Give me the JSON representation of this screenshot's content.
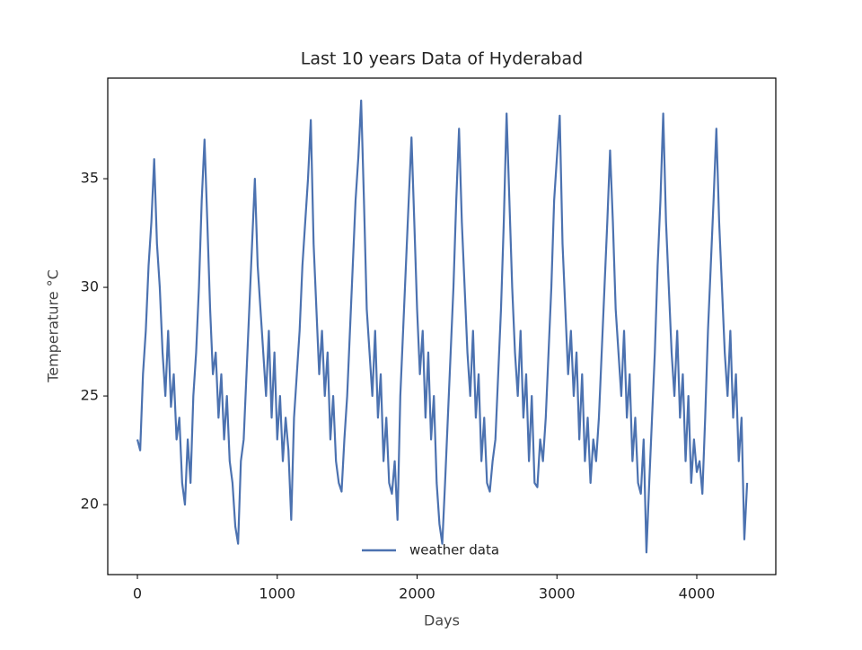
{
  "chart_data": {
    "type": "line",
    "title": "Last 10 years Data of Hyderabad",
    "x_label": "Days",
    "y_label": "Temperature °C",
    "x": [
      0,
      20,
      40,
      60,
      80,
      100,
      120,
      140,
      160,
      180,
      200,
      220,
      240,
      260,
      280,
      300,
      320,
      340,
      360,
      380,
      400,
      420,
      440,
      460,
      480,
      500,
      520,
      540,
      560,
      580,
      600,
      620,
      640,
      660,
      680,
      700,
      720,
      740,
      760,
      780,
      800,
      820,
      840,
      860,
      880,
      900,
      920,
      940,
      960,
      980,
      1000,
      1020,
      1040,
      1060,
      1080,
      1100,
      1120,
      1140,
      1160,
      1180,
      1200,
      1220,
      1240,
      1260,
      1280,
      1300,
      1320,
      1340,
      1360,
      1380,
      1400,
      1420,
      1440,
      1460,
      1480,
      1500,
      1520,
      1540,
      1560,
      1580,
      1600,
      1620,
      1640,
      1660,
      1680,
      1700,
      1720,
      1740,
      1760,
      1780,
      1800,
      1820,
      1840,
      1860,
      1880,
      1900,
      1920,
      1940,
      1960,
      1980,
      2000,
      2020,
      2040,
      2060,
      2080,
      2100,
      2120,
      2140,
      2160,
      2180,
      2200,
      2220,
      2240,
      2260,
      2280,
      2300,
      2320,
      2340,
      2360,
      2380,
      2400,
      2420,
      2440,
      2460,
      2480,
      2500,
      2520,
      2540,
      2560,
      2580,
      2600,
      2620,
      2640,
      2660,
      2680,
      2700,
      2720,
      2740,
      2760,
      2780,
      2800,
      2820,
      2840,
      2860,
      2880,
      2900,
      2920,
      2940,
      2960,
      2980,
      3000,
      3020,
      3040,
      3060,
      3080,
      3100,
      3120,
      3140,
      3160,
      3180,
      3200,
      3220,
      3240,
      3260,
      3280,
      3300,
      3320,
      3340,
      3360,
      3380,
      3400,
      3420,
      3440,
      3460,
      3480,
      3500,
      3520,
      3540,
      3560,
      3580,
      3600,
      3620,
      3640,
      3660,
      3680,
      3700,
      3720,
      3740,
      3760,
      3780,
      3800,
      3820,
      3840,
      3860,
      3880,
      3900,
      3920,
      3940,
      3960,
      3980,
      4000,
      4020,
      4040,
      4060,
      4080,
      4100,
      4120,
      4140,
      4160,
      4180,
      4200,
      4220,
      4240,
      4260,
      4280,
      4300,
      4320,
      4340,
      4360
    ],
    "series": [
      {
        "name": "weather data",
        "color": "#4c72b0",
        "values": [
          23,
          22.5,
          26,
          28,
          31,
          33,
          35.9,
          32,
          30,
          27,
          25,
          28,
          24.5,
          26,
          23,
          24,
          21,
          20,
          23,
          21,
          25,
          27,
          30,
          34,
          36.8,
          33,
          29,
          26,
          27,
          24,
          26,
          23,
          25,
          22,
          21,
          19,
          18.2,
          22,
          23,
          26,
          29,
          32,
          35,
          31,
          29,
          27,
          25,
          28,
          24,
          27,
          23,
          25,
          22,
          24,
          22.5,
          19.3,
          24,
          26,
          28,
          31,
          33,
          35,
          37.7,
          32,
          29,
          26,
          28,
          25,
          27,
          23,
          25,
          22,
          21,
          20.6,
          23,
          25,
          28,
          31,
          34,
          36,
          38.6,
          34,
          29,
          27,
          25,
          28,
          24,
          26,
          22,
          24,
          21,
          20.5,
          22,
          19.3,
          25,
          28,
          31,
          34,
          36.9,
          33,
          29,
          26,
          28,
          24,
          27,
          23,
          25,
          21,
          19.1,
          18.2,
          21,
          24,
          27,
          30,
          34,
          37.3,
          33,
          30,
          27,
          25,
          28,
          24,
          26,
          22,
          24,
          21,
          20.6,
          22,
          23,
          26,
          29,
          33,
          38,
          34,
          30,
          27,
          25,
          28,
          24,
          26,
          22,
          25,
          21,
          20.8,
          23,
          22,
          24,
          27,
          30,
          34,
          36,
          37.9,
          32,
          29,
          26,
          28,
          25,
          27,
          23,
          26,
          22,
          24,
          21,
          23,
          22,
          24,
          27,
          30,
          33,
          36.3,
          33,
          29,
          27,
          25,
          28,
          24,
          26,
          22,
          24,
          21,
          20.5,
          23,
          17.8,
          21,
          24,
          27,
          31,
          34,
          38,
          33,
          30,
          27,
          25,
          28,
          24,
          26,
          22,
          25,
          21,
          23,
          21.5,
          22,
          20.5,
          24,
          28,
          31,
          34,
          37.3,
          33,
          30,
          27,
          25,
          28,
          24,
          26,
          22,
          24,
          18.4,
          21
        ]
      }
    ],
    "xlim": [
      -212,
      4565
    ],
    "xticks": [
      0,
      1000,
      2000,
      3000,
      4000
    ],
    "ylim": [
      16.78,
      39.63
    ],
    "yticks": [
      20,
      25,
      30,
      35
    ],
    "grid": false,
    "legend": "lower center"
  }
}
